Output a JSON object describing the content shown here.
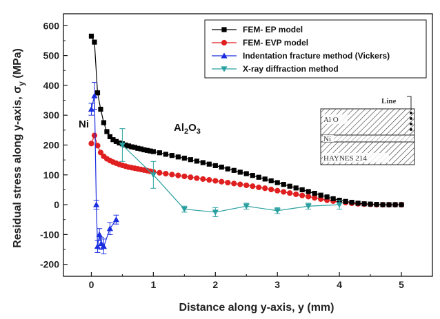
{
  "chart_data": {
    "type": "line",
    "xlabel": "Distance along y-axis, y (mm)",
    "ylabel_main": "Residual stress along y-axis, σ",
    "ylabel_sub": "y",
    "ylabel_unit": " (MPa)",
    "xlim": [
      -0.45,
      5.5
    ],
    "ylim": [
      -240,
      640
    ],
    "xticks": [
      0,
      1,
      2,
      3,
      4,
      5
    ],
    "yticks": [
      -200,
      -100,
      0,
      100,
      200,
      300,
      400,
      500,
      600
    ],
    "legend_position": "top-right",
    "series": [
      {
        "name": "FEM- EP model",
        "color": "#000000",
        "marker": "square",
        "x": [
          0.0,
          0.05,
          0.1,
          0.15,
          0.2,
          0.25,
          0.3,
          0.35,
          0.4,
          0.45,
          0.5,
          0.55,
          0.6,
          0.65,
          0.7,
          0.75,
          0.8,
          0.85,
          0.9,
          0.95,
          1.0,
          1.1,
          1.2,
          1.3,
          1.4,
          1.5,
          1.6,
          1.7,
          1.8,
          1.9,
          2.0,
          2.1,
          2.2,
          2.3,
          2.4,
          2.5,
          2.6,
          2.7,
          2.8,
          2.9,
          3.0,
          3.1,
          3.2,
          3.3,
          3.4,
          3.5,
          3.6,
          3.7,
          3.8,
          3.9,
          4.0,
          4.1,
          4.2,
          4.3,
          4.4,
          4.5,
          4.6,
          4.7,
          4.8,
          4.9,
          5.0
        ],
        "y": [
          565,
          545,
          375,
          320,
          275,
          245,
          228,
          218,
          212,
          207,
          204,
          200,
          197,
          194,
          192,
          189,
          187,
          184,
          182,
          180,
          178,
          174,
          169,
          165,
          160,
          156,
          151,
          146,
          141,
          136,
          131,
          126,
          120,
          115,
          109,
          104,
          98,
          92,
          86,
          80,
          74,
          68,
          62,
          56,
          50,
          44,
          38,
          32,
          26,
          20,
          15,
          11,
          8,
          5,
          3,
          2,
          1,
          0,
          0,
          0,
          0
        ]
      },
      {
        "name": "FEM-  EVP model",
        "color": "#e02020",
        "marker": "circle",
        "x": [
          0.0,
          0.05,
          0.1,
          0.15,
          0.2,
          0.25,
          0.3,
          0.35,
          0.4,
          0.45,
          0.5,
          0.55,
          0.6,
          0.65,
          0.7,
          0.75,
          0.8,
          0.85,
          0.9,
          0.95,
          1.0,
          1.1,
          1.2,
          1.3,
          1.4,
          1.5,
          1.6,
          1.7,
          1.8,
          1.9,
          2.0,
          2.1,
          2.2,
          2.3,
          2.4,
          2.5,
          2.6,
          2.7,
          2.8,
          2.9,
          3.0,
          3.1,
          3.2,
          3.3,
          3.4,
          3.5,
          3.6,
          3.7,
          3.8,
          3.9,
          4.0,
          4.1,
          4.2,
          4.3,
          4.4,
          4.5,
          4.6,
          4.7,
          4.8,
          4.9,
          5.0
        ],
        "y": [
          205,
          232,
          198,
          175,
          162,
          154,
          148,
          143,
          139,
          135,
          132,
          129,
          126,
          124,
          122,
          120,
          118,
          116,
          114,
          112,
          110,
          107,
          104,
          101,
          98,
          95,
          92,
          89,
          86,
          83,
          80,
          77,
          74,
          71,
          68,
          65,
          62,
          58,
          55,
          51,
          47,
          43,
          39,
          35,
          31,
          27,
          23,
          19,
          15,
          12,
          9,
          7,
          5,
          3,
          2,
          1,
          0,
          0,
          0,
          0,
          0
        ]
      },
      {
        "name": "Indentation fracture method (Vickers)",
        "color": "#1a2ee0",
        "marker": "triangle-up",
        "x": [
          0.0,
          0.05,
          0.08,
          0.1,
          0.13,
          0.16,
          0.2,
          0.3,
          0.4
        ],
        "y": [
          320,
          365,
          0,
          -140,
          -100,
          -130,
          -140,
          -80,
          -50
        ],
        "err": [
          20,
          45,
          15,
          20,
          20,
          20,
          25,
          20,
          15
        ]
      },
      {
        "name": "X-ray diffraction method",
        "color": "#2aa0a0",
        "marker": "triangle-down",
        "x": [
          0.5,
          1.0,
          1.5,
          2.0,
          2.5,
          3.0,
          3.5,
          4.0
        ],
        "y": [
          200,
          100,
          -15,
          -25,
          -5,
          -20,
          -5,
          0
        ],
        "err": [
          55,
          45,
          10,
          15,
          10,
          10,
          10,
          15
        ]
      }
    ],
    "annotations": {
      "ni_label": "Ni",
      "al_label_main": "Al",
      "al_label_sub1": "2",
      "al_label_mid": "O",
      "al_label_sub2": "3"
    },
    "inset": {
      "line_label": "Line",
      "layer1": "Al O",
      "layer2": "Ni",
      "layer3": "HAYNES   214"
    }
  }
}
